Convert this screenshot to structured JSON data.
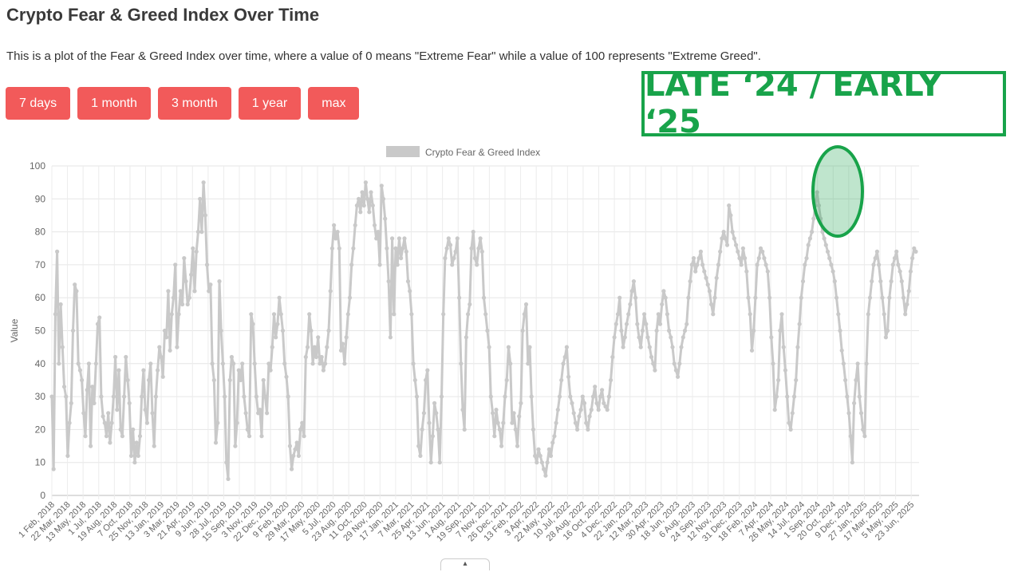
{
  "page": {
    "title": "Crypto Fear & Greed Index Over Time",
    "description": "This is a plot of the Fear & Greed Index over time, where a value of 0 means \"Extreme Fear\" while a value of 100 represents \"Extreme Greed\"."
  },
  "range_buttons": [
    {
      "label": "7 days"
    },
    {
      "label": "1 month"
    },
    {
      "label": "3 month"
    },
    {
      "label": "1 year"
    },
    {
      "label": "max"
    }
  ],
  "annotation": {
    "text": "LATE ‘24 / EARLY ‘25",
    "color": "#18a34a"
  },
  "scroll_tab": {
    "glyph": "▴"
  },
  "chart_data": {
    "type": "line",
    "title": "",
    "legend": {
      "label": "Crypto Fear & Greed Index",
      "position": "top"
    },
    "xlabel": "",
    "ylabel": "Value",
    "ylim": [
      0,
      100
    ],
    "yticks": [
      0,
      10,
      20,
      30,
      40,
      50,
      60,
      70,
      80,
      90,
      100
    ],
    "grid": true,
    "series_color": "#c9c9c9",
    "x_tick_labels": [
      "1 Feb, 2018",
      "22 Mar, 2018",
      "13 May, 2018",
      "1 Jul, 2018",
      "19 Aug, 2018",
      "7 Oct, 2018",
      "25 Nov, 2018",
      "13 Jan, 2019",
      "3 Mar, 2019",
      "21 Apr, 2019",
      "9 Jun, 2019",
      "28 Jul, 2019",
      "15 Sep, 2019",
      "3 Nov, 2019",
      "22 Dec, 2019",
      "9 Feb, 2020",
      "29 Mar, 2020",
      "17 May, 2020",
      "5 Jul, 2020",
      "23 Aug, 2020",
      "11 Oct, 2020",
      "29 Nov, 2020",
      "17 Jan, 2021",
      "7 Mar, 2021",
      "25 Apr, 2021",
      "13 Jun, 2021",
      "1 Aug, 2021",
      "19 Sep, 2021",
      "7 Nov, 2021",
      "26 Dec, 2021",
      "13 Feb, 2022",
      "3 Apr, 2022",
      "22 May, 2022",
      "10 Jul, 2022",
      "28 Aug, 2022",
      "16 Oct, 2022",
      "4 Dec, 2022",
      "22 Jan, 2023",
      "12 Mar, 2023",
      "30 Apr, 2023",
      "18 Jun, 2023",
      "6 Aug, 2023",
      "24 Sep, 2023",
      "12 Nov, 2023",
      "31 Dec, 2023",
      "18 Feb, 2024",
      "7 Apr, 2024",
      "26 May, 2024",
      "14 Jul, 2024",
      "1 Sep, 2024",
      "20 Oct, 2024",
      "9 Dec, 2024",
      "27 Jan, 2025",
      "17 Mar, 2025",
      "5 May, 2025",
      "23 Jun, 2025"
    ],
    "values": [
      30,
      8,
      55,
      74,
      40,
      58,
      45,
      33,
      30,
      12,
      22,
      28,
      50,
      64,
      62,
      40,
      38,
      35,
      25,
      18,
      32,
      40,
      15,
      33,
      28,
      40,
      52,
      54,
      30,
      24,
      22,
      18,
      25,
      16,
      22,
      30,
      42,
      26,
      38,
      20,
      18,
      30,
      42,
      35,
      28,
      12,
      20,
      10,
      16,
      12,
      18,
      30,
      38,
      26,
      22,
      35,
      40,
      25,
      15,
      30,
      38,
      45,
      42,
      36,
      50,
      48,
      62,
      44,
      55,
      60,
      70,
      45,
      55,
      62,
      58,
      72,
      65,
      58,
      60,
      67,
      75,
      62,
      74,
      80,
      90,
      80,
      95,
      85,
      70,
      62,
      64,
      40,
      35,
      16,
      22,
      65,
      50,
      40,
      30,
      10,
      5,
      35,
      42,
      40,
      15,
      22,
      38,
      35,
      40,
      30,
      25,
      20,
      18,
      55,
      52,
      40,
      30,
      25,
      26,
      18,
      35,
      30,
      25,
      40,
      38,
      45,
      55,
      48,
      52,
      60,
      55,
      50,
      40,
      36,
      30,
      15,
      8,
      12,
      14,
      16,
      12,
      20,
      22,
      18,
      42,
      45,
      55,
      50,
      40,
      45,
      42,
      48,
      40,
      42,
      38,
      40,
      45,
      50,
      62,
      75,
      82,
      78,
      80,
      75,
      44,
      46,
      40,
      48,
      55,
      60,
      70,
      75,
      82,
      88,
      90,
      86,
      92,
      88,
      95,
      90,
      86,
      92,
      88,
      82,
      78,
      80,
      70,
      94,
      90,
      84,
      75,
      65,
      48,
      78,
      55,
      75,
      70,
      78,
      72,
      75,
      78,
      74,
      65,
      62,
      55,
      40,
      35,
      30,
      15,
      12,
      20,
      25,
      35,
      38,
      22,
      10,
      18,
      28,
      25,
      20,
      10,
      30,
      55,
      72,
      75,
      78,
      76,
      70,
      72,
      74,
      78,
      60,
      40,
      26,
      20,
      48,
      55,
      58,
      75,
      80,
      72,
      70,
      75,
      78,
      74,
      60,
      55,
      50,
      45,
      30,
      25,
      18,
      26,
      22,
      20,
      15,
      22,
      30,
      35,
      45,
      40,
      22,
      25,
      20,
      15,
      24,
      28,
      50,
      55,
      58,
      40,
      45,
      30,
      20,
      12,
      10,
      14,
      12,
      10,
      8,
      6,
      10,
      14,
      12,
      16,
      18,
      22,
      26,
      30,
      35,
      40,
      42,
      45,
      36,
      30,
      28,
      25,
      22,
      20,
      24,
      26,
      30,
      28,
      22,
      20,
      24,
      26,
      30,
      33,
      28,
      26,
      30,
      32,
      28,
      27,
      26,
      30,
      35,
      42,
      48,
      52,
      55,
      60,
      50,
      45,
      48,
      52,
      55,
      58,
      62,
      65,
      60,
      52,
      48,
      45,
      50,
      55,
      52,
      48,
      45,
      42,
      40,
      38,
      50,
      55,
      52,
      58,
      62,
      60,
      55,
      50,
      48,
      45,
      40,
      38,
      36,
      40,
      45,
      48,
      50,
      52,
      60,
      65,
      70,
      72,
      68,
      70,
      72,
      74,
      70,
      68,
      66,
      64,
      62,
      58,
      55,
      60,
      66,
      70,
      74,
      78,
      80,
      78,
      76,
      88,
      85,
      80,
      78,
      76,
      74,
      72,
      70,
      75,
      72,
      68,
      60,
      55,
      44,
      50,
      60,
      70,
      72,
      75,
      74,
      72,
      70,
      68,
      60,
      48,
      40,
      26,
      30,
      35,
      50,
      55,
      45,
      38,
      30,
      22,
      20,
      25,
      30,
      35,
      45,
      52,
      60,
      65,
      70,
      72,
      76,
      78,
      80,
      84,
      88,
      92,
      88,
      84,
      80,
      78,
      76,
      74,
      72,
      70,
      68,
      65,
      60,
      55,
      50,
      44,
      40,
      35,
      30,
      25,
      18,
      10,
      28,
      35,
      40,
      30,
      25,
      20,
      18,
      40,
      55,
      60,
      65,
      70,
      72,
      74,
      70,
      65,
      60,
      55,
      48,
      50,
      60,
      65,
      70,
      72,
      74,
      70,
      68,
      65,
      60,
      55,
      58,
      62,
      68,
      72,
      75,
      74
    ]
  }
}
